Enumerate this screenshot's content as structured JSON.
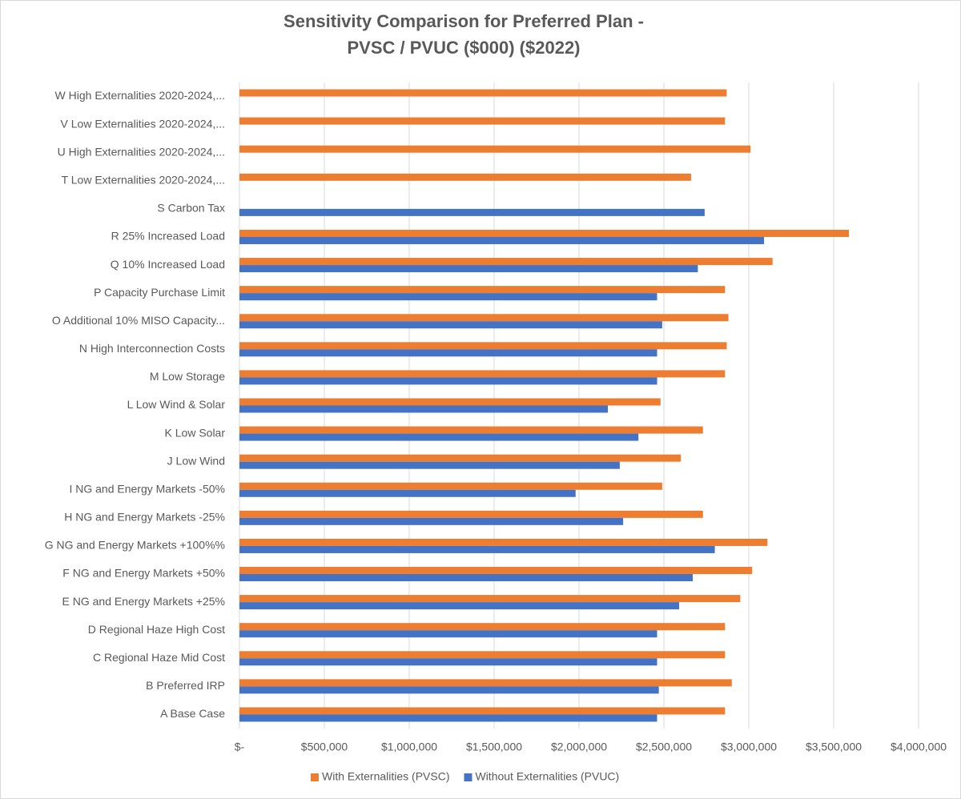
{
  "chart_data": {
    "type": "hbar",
    "title": [
      "Sensitivity Comparison for Preferred Plan -",
      "PVSC / PVUC ($000) ($2022)"
    ],
    "categories": [
      "A Base Case",
      "B Preferred IRP",
      "C Regional Haze Mid Cost",
      "D Regional Haze High Cost",
      "E NG and Energy Markets +25%",
      "F NG and Energy Markets +50%",
      "G NG and Energy Markets +100%%",
      "H NG and Energy Markets -25%",
      "I NG and Energy Markets -50%",
      "J Low Wind",
      "K Low Solar",
      "L Low Wind & Solar",
      "M Low Storage",
      "N High Interconnection Costs",
      "O Additional 10% MISO Capacity...",
      "P Capacity Purchase Limit",
      "Q 10% Increased Load",
      "R 25% Increased Load",
      "S Carbon Tax",
      "T Low Externalities 2020-2024,...",
      "U High Externalities 2020-2024,...",
      "V Low Externalities 2020-2024,...",
      "W High Externalities 2020-2024,..."
    ],
    "series": [
      {
        "name": "With Externalities (PVSC)",
        "color": "#ed7d31",
        "values": [
          2860000,
          2900000,
          2860000,
          2860000,
          2950000,
          3020000,
          3110000,
          2730000,
          2490000,
          2600000,
          2730000,
          2480000,
          2860000,
          2870000,
          2880000,
          2860000,
          3140000,
          3590000,
          null,
          2660000,
          3010000,
          2860000,
          2870000
        ]
      },
      {
        "name": "Without Externalities (PVUC)",
        "color": "#4472c4",
        "values": [
          2460000,
          2470000,
          2460000,
          2460000,
          2590000,
          2670000,
          2800000,
          2260000,
          1980000,
          2240000,
          2350000,
          2170000,
          2460000,
          2460000,
          2490000,
          2460000,
          2700000,
          3090000,
          2740000,
          null,
          null,
          null,
          null
        ]
      }
    ],
    "xlim": [
      0,
      4000000
    ],
    "xticks": [
      {
        "value": 0,
        "label": "$-"
      },
      {
        "value": 500000,
        "label": "$500,000"
      },
      {
        "value": 1000000,
        "label": "$1,000,000"
      },
      {
        "value": 1500000,
        "label": "$1,500,000"
      },
      {
        "value": 2000000,
        "label": "$2,000,000"
      },
      {
        "value": 2500000,
        "label": "$2,500,000"
      },
      {
        "value": 3000000,
        "label": "$3,000,000"
      },
      {
        "value": 3500000,
        "label": "$3,500,000"
      },
      {
        "value": 4000000,
        "label": "$4,000,000"
      }
    ],
    "grid": true,
    "legend": "bottom"
  }
}
